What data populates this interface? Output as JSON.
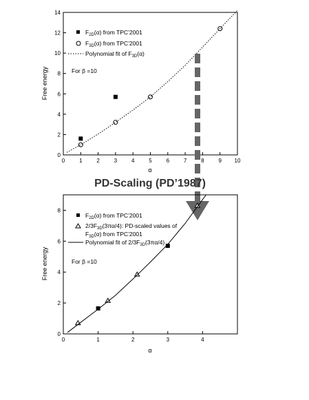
{
  "section_title": "PD-Scaling (PD’1987)",
  "chart_data": [
    {
      "type": "scatter",
      "xlabel": "α",
      "ylabel": "Free energy",
      "xlim": [
        0,
        10
      ],
      "ylim": [
        0,
        14
      ],
      "xticks": [
        "0",
        "1",
        "2",
        "3",
        "4",
        "5",
        "6",
        "7",
        "8",
        "9",
        "10"
      ],
      "yticks": [
        "0",
        "2",
        "4",
        "6",
        "8",
        "10",
        "12",
        "14"
      ],
      "annotation": "For β =10",
      "legend_position": "top-left",
      "series": [
        {
          "name": "F2D(α) from TPC’2001",
          "marker": "filled-square",
          "points": [
            [
              1,
              1.6
            ],
            [
              3,
              5.7
            ]
          ]
        },
        {
          "name": "F3D(α) from TPC’2001",
          "marker": "open-circle",
          "points": [
            [
              1,
              1.0
            ],
            [
              3,
              3.2
            ],
            [
              5,
              5.7
            ],
            [
              9,
              12.4
            ]
          ]
        },
        {
          "name": "Polynomial fit of F3D(α)",
          "style": "dotted",
          "points": [
            [
              0.2,
              0.25
            ],
            [
              1,
              1.0
            ],
            [
              2,
              2.05
            ],
            [
              3,
              3.2
            ],
            [
              4,
              4.4
            ],
            [
              5,
              5.7
            ],
            [
              6,
              7.2
            ],
            [
              7,
              8.8
            ],
            [
              8,
              10.6
            ],
            [
              9,
              12.4
            ],
            [
              10,
              14.2
            ]
          ]
        }
      ],
      "legend": [
        {
          "main": "F",
          "sub": "2D",
          "rest": "(α) from TPC’2001"
        },
        {
          "main": "F",
          "sub": "3D",
          "rest": "(α) from TPC’2001"
        },
        {
          "main": "Polynomial fit of F",
          "sub": "3D",
          "rest": "(α)"
        }
      ]
    },
    {
      "type": "scatter",
      "xlabel": "α",
      "ylabel": "Free energy",
      "xlim": [
        0,
        5
      ],
      "ylim": [
        0,
        9
      ],
      "xticks": [
        "0",
        "1",
        "2",
        "3",
        "4"
      ],
      "yticks": [
        "0",
        "2",
        "4",
        "6",
        "8"
      ],
      "annotation": "For β =10",
      "legend_position": "top-left",
      "series": [
        {
          "name": "F2D(α) from TPC’2001",
          "marker": "filled-square",
          "points": [
            [
              1,
              1.65
            ],
            [
              3,
              5.7
            ]
          ]
        },
        {
          "name": "2/3F3D(3πα/4): PD-scaled values of F3D(α) from TPC’2001",
          "marker": "open-triangle",
          "points": [
            [
              0.42,
              0.7
            ],
            [
              1.28,
              2.15
            ],
            [
              2.12,
              3.85
            ],
            [
              3.85,
              8.3
            ]
          ]
        },
        {
          "name": "Polynomial fit of 2/3F3D(3πα/4)",
          "style": "solid",
          "points": [
            [
              0.12,
              0.1
            ],
            [
              0.5,
              0.75
            ],
            [
              1,
              1.6
            ],
            [
              1.5,
              2.5
            ],
            [
              2,
              3.55
            ],
            [
              2.5,
              4.65
            ],
            [
              3,
              5.8
            ],
            [
              3.5,
              7.15
            ],
            [
              4,
              8.7
            ],
            [
              4.1,
              9
            ]
          ]
        }
      ],
      "legend": [
        {
          "main": "F",
          "sub": "2D",
          "rest": "(α) from TPC’2001"
        },
        {
          "main": "2/3F",
          "sub": "3D",
          "rest": "(3πα/4): PD-scaled values of"
        },
        {
          "main": "F",
          "sub": "3D",
          "rest": "(α) from TPC’2001"
        },
        {
          "main": "Polynomial fit of 2/3F",
          "sub": "3D",
          "rest": "(3πα/4)"
        }
      ]
    }
  ]
}
